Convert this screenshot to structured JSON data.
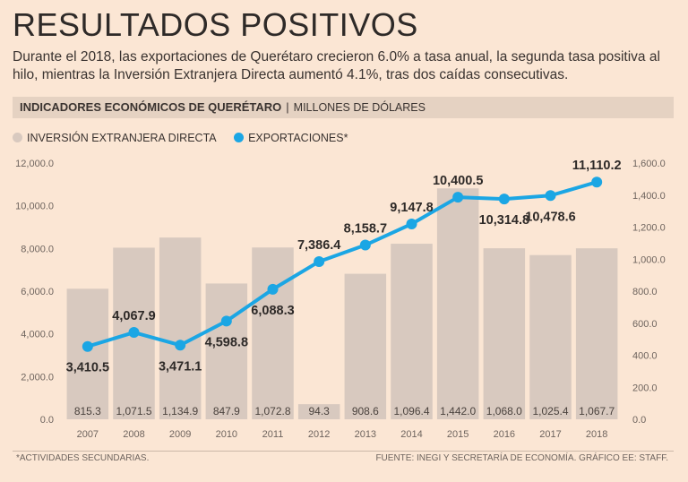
{
  "title": "RESULTADOS POSITIVOS",
  "subtitle": "Durante el 2018, las exportaciones de Querétaro crecieron 6.0% a tasa anual, la segunda tasa positiva al hilo, mientras la Inversión Extranjera Directa aumentó 4.1%, tras dos caídas consecutivas.",
  "section": {
    "title": "INDICADORES ECONÓMICOS DE QUERÉTARO",
    "separator": "|",
    "unit": "Millones de dólares"
  },
  "legend": {
    "bars": "INVERSIÓN EXTRANJERA DIRECTA",
    "line": "EXPORTACIONES*"
  },
  "colors": {
    "bar": "#d8c9bf",
    "line": "#1ba6e4",
    "background": "#fbe6d4"
  },
  "chart_data": {
    "type": "bar+line",
    "categories": [
      "2007",
      "2008",
      "2009",
      "2010",
      "2011",
      "2012",
      "2013",
      "2014",
      "2015",
      "2016",
      "2017",
      "2018"
    ],
    "series": [
      {
        "name": "INVERSIÓN EXTRANJERA DIRECTA",
        "type": "bar",
        "axis": "right",
        "values": [
          815.3,
          1071.5,
          1134.9,
          847.9,
          1072.8,
          94.3,
          908.6,
          1096.4,
          1442.0,
          1068.0,
          1025.4,
          1067.7
        ],
        "labels": [
          "815.3",
          "1,071.5",
          "1,134.9",
          "847.9",
          "1,072.8",
          "94.3",
          "908.6",
          "1,096.4",
          "1,442.0",
          "1,068.0",
          "1,025.4",
          "1,067.7"
        ]
      },
      {
        "name": "EXPORTACIONES*",
        "type": "line",
        "axis": "left",
        "values": [
          3410.5,
          4067.9,
          3471.1,
          4598.8,
          6088.3,
          7386.4,
          8158.7,
          9147.8,
          10400.5,
          10314.8,
          10478.6,
          11110.2
        ],
        "labels": [
          "3,410.5",
          "4,067.9",
          "3,471.1",
          "4,598.8",
          "6,088.3",
          "7,386.4",
          "8,158.7",
          "9,147.8",
          "10,400.5",
          "10,314.8",
          "10,478.6",
          "11,110.2"
        ],
        "label_position": [
          "below",
          "above",
          "below",
          "below",
          "below",
          "above",
          "above",
          "above",
          "above",
          "below",
          "below",
          "above"
        ]
      }
    ],
    "y_left": {
      "ylim": [
        0,
        12000
      ],
      "ticks": [
        "0.0",
        "2,000.0",
        "4,000.0",
        "6,000.0",
        "8,000.0",
        "10,000.0",
        "12,000.0"
      ]
    },
    "y_right": {
      "ylim": [
        0,
        1600
      ],
      "ticks": [
        "0.0",
        "200.0",
        "400.0",
        "600.0",
        "800.0",
        "1,000.0",
        "1,200.0",
        "1,400.0",
        "1,600.0"
      ]
    },
    "grid": false
  },
  "footer": {
    "note": "*ACTIVIDADES SECUNDARIAS.",
    "source": "FUENTE: INEGI Y SECRETARÍA DE ECONOMÍA. GRÁFICO EE: STAFF."
  }
}
